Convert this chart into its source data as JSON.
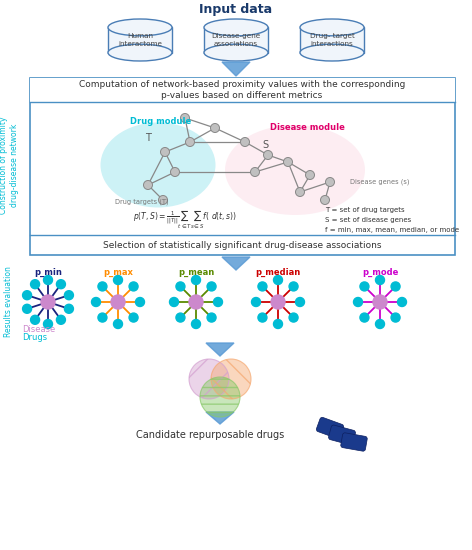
{
  "title_input": "Input data",
  "db_labels": [
    "Human\ninteractome",
    "Disease-gene\nassociations",
    "Drug- target\ninteractions"
  ],
  "box1_text": "Computation of network-based proximity values with the corresponding\np-values based on different metrics",
  "box2_text": "Selection of statistically significant drug-disease associations",
  "sidebar1_text": "Construction of proximity\ndrug-disease network",
  "sidebar2_text": "Results evaluation",
  "drug_module_label": "Drug module",
  "disease_module_label": "Disease module",
  "drug_targets_label": "Drug targets (T)",
  "disease_genes_label": "Disease genes (s)",
  "T_label": "T",
  "S_label": "S",
  "legend_T": "T = set of drug targets",
  "legend_S": "S = set of disease genes",
  "legend_f": "f = min, max, mean, median, or mode",
  "network_labels": [
    "p_min",
    "p_max",
    "p_mean",
    "p_median",
    "p_mode"
  ],
  "network_colors": [
    "#1a237e",
    "#ff8c00",
    "#5a8a00",
    "#cc0000",
    "#cc00cc"
  ],
  "node_center_color": "#cc88cc",
  "node_outer_color": "#00bcd4",
  "disease_legend_color": "#cc88cc",
  "drugs_legend_color": "#00bcd4",
  "candidate_text": "Candidate repurposable drugs",
  "bg_color": "#ffffff",
  "box_color": "#4a90c4",
  "arrow_color": "#5b9bd5",
  "sidebar_color": "#00bcd4",
  "drug_module_bg": "#b2ebf2",
  "disease_module_bg": "#fce4ec"
}
